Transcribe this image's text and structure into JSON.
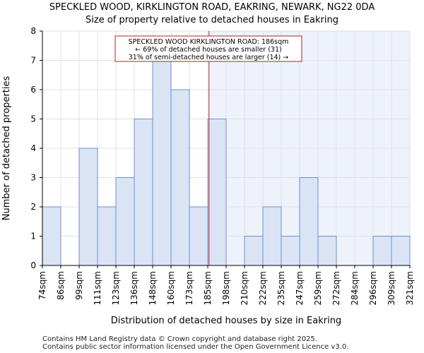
{
  "chart_data": {
    "type": "histogram",
    "title": "SPECKLED WOOD, KIRKLINGTON ROAD, EAKRING, NEWARK, NG22 0DA",
    "subtitle": "Size of property relative to detached houses in Eakring",
    "xlabel": "Distribution of detached houses by size in Eakring",
    "ylabel": "Number of detached properties",
    "categories": [
      "74sqm",
      "86sqm",
      "99sqm",
      "111sqm",
      "123sqm",
      "136sqm",
      "148sqm",
      "160sqm",
      "173sqm",
      "185sqm",
      "198sqm",
      "210sqm",
      "222sqm",
      "235sqm",
      "247sqm",
      "259sqm",
      "272sqm",
      "284sqm",
      "296sqm",
      "309sqm",
      "321sqm"
    ],
    "values": [
      2,
      0,
      4,
      2,
      3,
      5,
      7,
      6,
      2,
      5,
      0,
      1,
      2,
      1,
      3,
      1,
      0,
      0,
      1,
      1
    ],
    "ylim": [
      0,
      8
    ],
    "yticks": [
      0,
      1,
      2,
      3,
      4,
      5,
      6,
      7,
      8
    ],
    "marker": {
      "value_sqm": 186,
      "line_color": "#b22222",
      "label_lines": [
        "SPECKLED WOOD KIRKLINGTON ROAD: 186sqm",
        "← 69% of detached houses are smaller (31)",
        "31% of semi-detached houses are larger (14) →"
      ]
    },
    "colors": {
      "bar_fill": "#dae4f5",
      "bar_stroke": "#6f8fcf",
      "shade": "#eef2fb",
      "grid": "#e0e0e0"
    },
    "grid": true
  },
  "footer": {
    "line1": "Contains HM Land Registry data © Crown copyright and database right 2025.",
    "line2": "Contains public sector information licensed under the Open Government Licence v3.0."
  }
}
